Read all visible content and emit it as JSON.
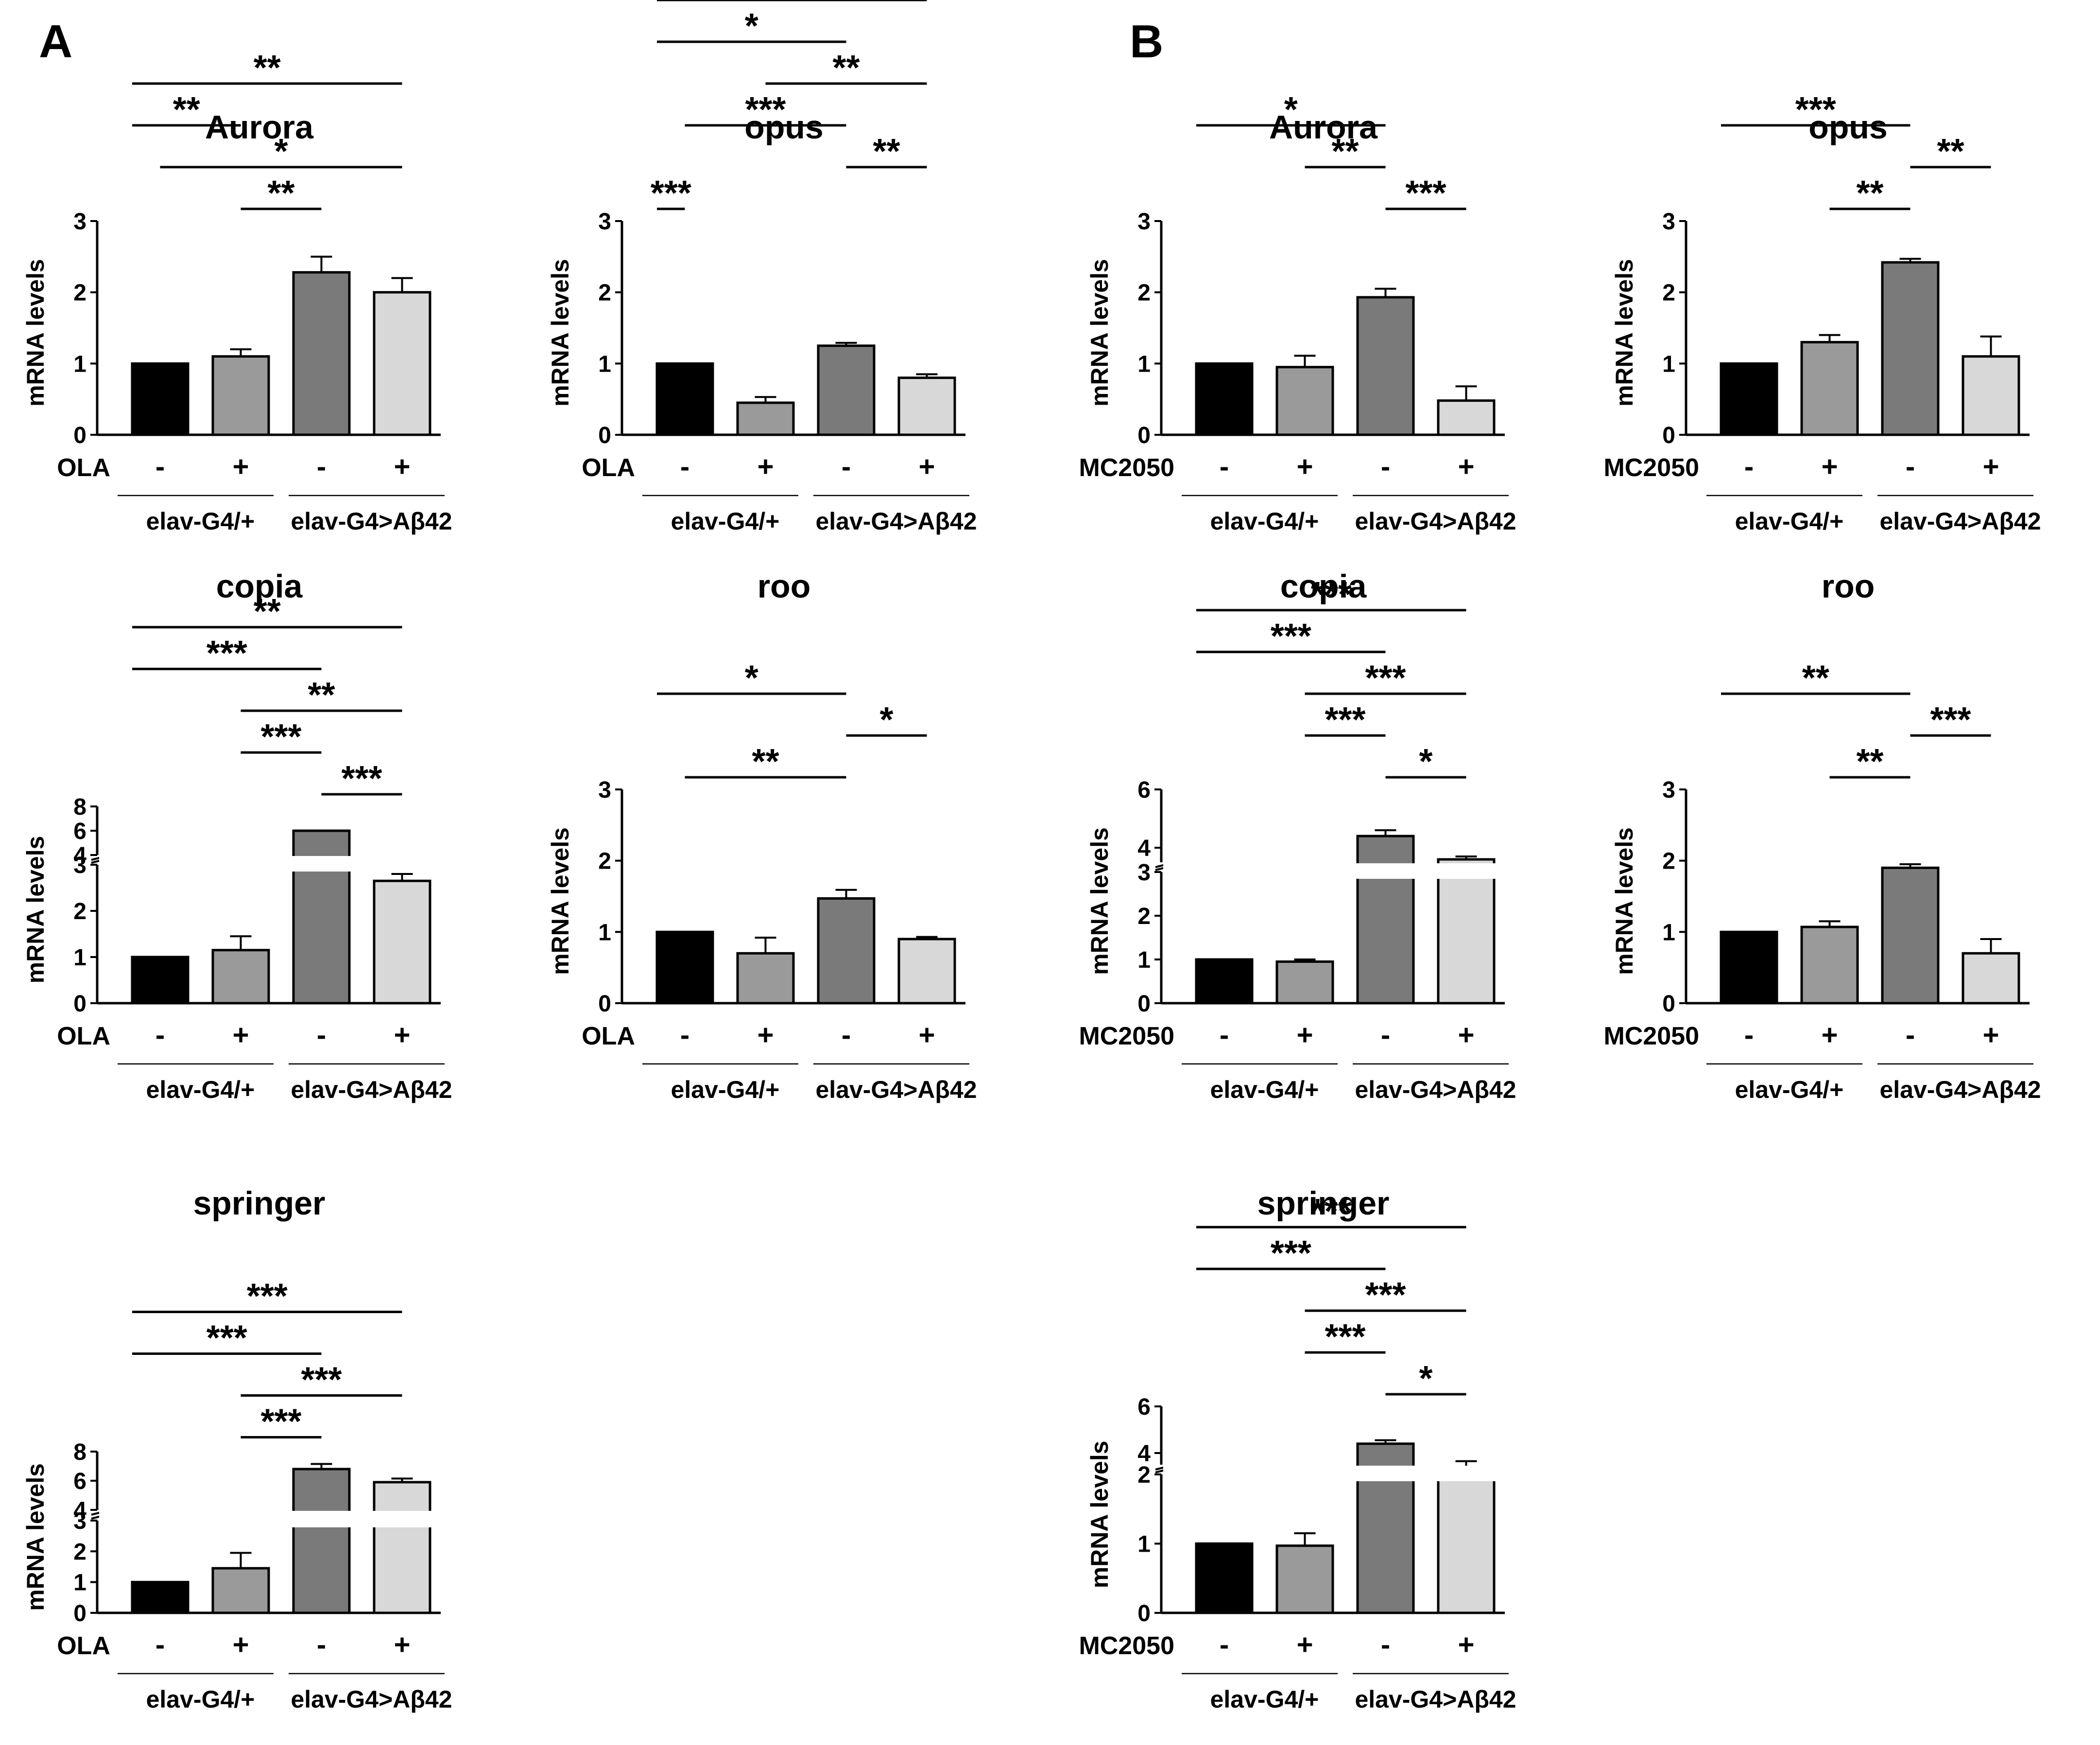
{
  "figure": {
    "panels": [
      {
        "letter": "A",
        "treatment": "OLA"
      },
      {
        "letter": "B",
        "treatment": "MC2050"
      }
    ],
    "colors": {
      "bars": [
        "#000000",
        "#9a9a9a",
        "#7a7a7a",
        "#d8d8d8"
      ],
      "axis": "#000000",
      "background": "#ffffff"
    },
    "shared_labels": {
      "ylabel": "mRNA levels",
      "treatment_signs": [
        "-",
        "+",
        "-",
        "+"
      ],
      "group_labels": [
        "elav-G4/+",
        "elav-G4>Aβ42"
      ]
    }
  },
  "chart_data": [
    {
      "panel": "A",
      "type": "bar",
      "title": "Aurora",
      "treatment": "OLA",
      "ylabel": "mRNA levels",
      "categories": [
        "elav-G4/+ -",
        "elav-G4/+ +",
        "elav-G4>Aβ42 -",
        "elav-G4>Aβ42 +"
      ],
      "values": [
        1.0,
        1.1,
        2.28,
        2.0
      ],
      "errors": [
        0,
        0.1,
        0.22,
        0.2
      ],
      "ylim": [
        0,
        3
      ],
      "yticks": [
        "0",
        "1",
        "2",
        "3"
      ],
      "significance": [
        {
          "from": 2,
          "to": 3,
          "label": "**"
        },
        {
          "from": 1,
          "to": 4,
          "label": "*"
        },
        {
          "from": 0,
          "to": 2,
          "label": "**"
        },
        {
          "from": 0,
          "to": 4,
          "label": "**"
        }
      ]
    },
    {
      "panel": "A",
      "type": "bar",
      "title": "opus",
      "treatment": "OLA",
      "ylabel": "mRNA levels",
      "categories": [
        "elav-G4/+ -",
        "elav-G4/+ +",
        "elav-G4>Aβ42 -",
        "elav-G4>Aβ42 +"
      ],
      "values": [
        1.0,
        0.45,
        1.25,
        0.8
      ],
      "errors": [
        0,
        0.08,
        0.04,
        0.05
      ],
      "ylim": [
        0,
        3
      ],
      "yticks": [
        "0",
        "1",
        "2",
        "3"
      ],
      "significance": [
        {
          "from": 0,
          "to": 1,
          "label": "***"
        },
        {
          "from": 3,
          "to": 4,
          "label": "**"
        },
        {
          "from": 1,
          "to": 3,
          "label": "***"
        },
        {
          "from": 2,
          "to": 4,
          "label": "**"
        },
        {
          "from": 0,
          "to": 3,
          "label": "*"
        },
        {
          "from": 0,
          "to": 4,
          "label": "*"
        }
      ]
    },
    {
      "panel": "A",
      "type": "bar",
      "title": "copia",
      "treatment": "OLA",
      "ylabel": "mRNA levels",
      "categories": [
        "elav-G4/+ -",
        "elav-G4/+ +",
        "elav-G4>Aβ42 -",
        "elav-G4>Aβ42 +"
      ],
      "values": [
        1.0,
        1.15,
        6.0,
        2.65
      ],
      "errors": [
        0,
        0.3,
        0,
        0.15
      ],
      "axis_break": true,
      "yticks": [
        "0",
        "1",
        "2",
        "3",
        "4",
        "6",
        "8"
      ],
      "significance": [
        {
          "from": 3,
          "to": 4,
          "label": "***"
        },
        {
          "from": 2,
          "to": 3,
          "label": "***"
        },
        {
          "from": 2,
          "to": 4,
          "label": "**"
        },
        {
          "from": 0,
          "to": 3,
          "label": "***"
        },
        {
          "from": 0,
          "to": 4,
          "label": "**"
        }
      ]
    },
    {
      "panel": "A",
      "type": "bar",
      "title": "roo",
      "treatment": "OLA",
      "ylabel": "mRNA levels",
      "categories": [
        "elav-G4/+ -",
        "elav-G4/+ +",
        "elav-G4>Aβ42 -",
        "elav-G4>Aβ42 +"
      ],
      "values": [
        1.0,
        0.7,
        1.47,
        0.9
      ],
      "errors": [
        0,
        0.22,
        0.12,
        0.03
      ],
      "ylim": [
        0,
        3
      ],
      "yticks": [
        "0",
        "1",
        "2",
        "3"
      ],
      "significance": [
        {
          "from": 1,
          "to": 3,
          "label": "**"
        },
        {
          "from": 3,
          "to": 4,
          "label": "*"
        },
        {
          "from": 0,
          "to": 3,
          "label": "*"
        }
      ]
    },
    {
      "panel": "A",
      "type": "bar",
      "title": "springer",
      "treatment": "OLA",
      "ylabel": "mRNA levels",
      "categories": [
        "elav-G4/+ -",
        "elav-G4/+ +",
        "elav-G4>Aβ42 -",
        "elav-G4>Aβ42 +"
      ],
      "values": [
        1.0,
        1.45,
        6.8,
        5.9
      ],
      "errors": [
        0,
        0.5,
        0.35,
        0.25
      ],
      "axis_break": true,
      "yticks": [
        "0",
        "1",
        "2",
        "3",
        "4",
        "6",
        "8"
      ],
      "significance": [
        {
          "from": 2,
          "to": 3,
          "label": "***"
        },
        {
          "from": 2,
          "to": 4,
          "label": "***"
        },
        {
          "from": 0,
          "to": 3,
          "label": "***"
        },
        {
          "from": 0,
          "to": 4,
          "label": "***"
        }
      ]
    },
    {
      "panel": "B",
      "type": "bar",
      "title": "Aurora",
      "treatment": "MC2050",
      "ylabel": "mRNA levels",
      "categories": [
        "elav-G4/+ -",
        "elav-G4/+ +",
        "elav-G4>Aβ42 -",
        "elav-G4>Aβ42 +"
      ],
      "values": [
        1.0,
        0.95,
        1.93,
        0.48
      ],
      "errors": [
        0,
        0.16,
        0.12,
        0.2
      ],
      "ylim": [
        0,
        3
      ],
      "yticks": [
        "0",
        "1",
        "2",
        "3"
      ],
      "significance": [
        {
          "from": 3,
          "to": 4,
          "label": "***"
        },
        {
          "from": 2,
          "to": 3,
          "label": "**"
        },
        {
          "from": 0,
          "to": 3,
          "label": "*"
        }
      ]
    },
    {
      "panel": "B",
      "type": "bar",
      "title": "opus",
      "treatment": "MC2050",
      "ylabel": "mRNA levels",
      "categories": [
        "elav-G4/+ -",
        "elav-G4/+ +",
        "elav-G4>Aβ42 -",
        "elav-G4>Aβ42 +"
      ],
      "values": [
        1.0,
        1.3,
        2.42,
        1.1
      ],
      "errors": [
        0,
        0.1,
        0.05,
        0.28
      ],
      "ylim": [
        0,
        3
      ],
      "yticks": [
        "0",
        "1",
        "2",
        "3"
      ],
      "significance": [
        {
          "from": 2,
          "to": 3,
          "label": "**"
        },
        {
          "from": 3,
          "to": 4,
          "label": "**"
        },
        {
          "from": 0,
          "to": 3,
          "label": "***"
        }
      ]
    },
    {
      "panel": "B",
      "type": "bar",
      "title": "copia",
      "treatment": "MC2050",
      "ylabel": "mRNA levels",
      "categories": [
        "elav-G4/+ -",
        "elav-G4/+ +",
        "elav-G4>Aβ42 -",
        "elav-G4>Aβ42 +"
      ],
      "values": [
        1.0,
        0.95,
        4.4,
        3.6
      ],
      "errors": [
        0,
        0.05,
        0.2,
        0.1
      ],
      "axis_break": true,
      "yticks": [
        "0",
        "1",
        "2",
        "3",
        "4",
        "6"
      ],
      "significance": [
        {
          "from": 3,
          "to": 4,
          "label": "*"
        },
        {
          "from": 2,
          "to": 3,
          "label": "***"
        },
        {
          "from": 2,
          "to": 4,
          "label": "***"
        },
        {
          "from": 0,
          "to": 3,
          "label": "***"
        },
        {
          "from": 0,
          "to": 4,
          "label": "***"
        }
      ]
    },
    {
      "panel": "B",
      "type": "bar",
      "title": "roo",
      "treatment": "MC2050",
      "ylabel": "mRNA levels",
      "categories": [
        "elav-G4/+ -",
        "elav-G4/+ +",
        "elav-G4>Aβ42 -",
        "elav-G4>Aβ42 +"
      ],
      "values": [
        1.0,
        1.07,
        1.9,
        0.7
      ],
      "errors": [
        0,
        0.08,
        0.05,
        0.2
      ],
      "ylim": [
        0,
        3
      ],
      "yticks": [
        "0",
        "1",
        "2",
        "3"
      ],
      "significance": [
        {
          "from": 2,
          "to": 3,
          "label": "**"
        },
        {
          "from": 3,
          "to": 4,
          "label": "***"
        },
        {
          "from": 0,
          "to": 3,
          "label": "**"
        }
      ]
    },
    {
      "panel": "B",
      "type": "bar",
      "title": "springer",
      "treatment": "MC2050",
      "ylabel": "mRNA levels",
      "categories": [
        "elav-G4/+ -",
        "elav-G4/+ +",
        "elav-G4>Aβ42 -",
        "elav-G4>Aβ42 +"
      ],
      "values": [
        1.0,
        0.97,
        4.4,
        3.3
      ],
      "errors": [
        0,
        0.18,
        0.15,
        0.35
      ],
      "axis_break": true,
      "yticks": [
        "0",
        "1",
        "2",
        "4",
        "6"
      ],
      "significance": [
        {
          "from": 3,
          "to": 4,
          "label": "*"
        },
        {
          "from": 2,
          "to": 3,
          "label": "***"
        },
        {
          "from": 2,
          "to": 4,
          "label": "***"
        },
        {
          "from": 0,
          "to": 3,
          "label": "***"
        },
        {
          "from": 0,
          "to": 4,
          "label": "***"
        }
      ]
    }
  ]
}
